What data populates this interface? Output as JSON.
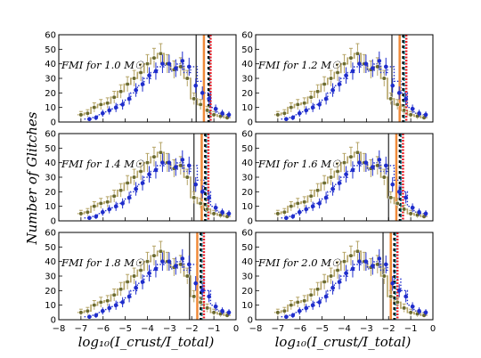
{
  "figure": {
    "ylabel": "Number of Glitches",
    "xlabel": "log₁₀(I_crust/I_total)"
  },
  "chart_data": {
    "type": "histogram-grid",
    "shared_x_range": [
      -8,
      0
    ],
    "shared_y_range": [
      0,
      60
    ],
    "x_ticks": [
      "−8",
      "−7",
      "−6",
      "−5",
      "−4",
      "−3",
      "−2",
      "−1",
      "0"
    ],
    "y_ticks": [
      "0",
      "10",
      "20",
      "30",
      "40",
      "50",
      "60"
    ],
    "x_bin_centers": [
      -7.0,
      -6.7,
      -6.4,
      -6.1,
      -5.8,
      -5.5,
      -5.2,
      -4.9,
      -4.6,
      -4.3,
      -4.0,
      -3.7,
      -3.4,
      -3.1,
      -2.8,
      -2.5,
      -2.2,
      -1.9,
      -1.6,
      -1.3,
      -1.0,
      -0.7,
      -0.4
    ],
    "colors": {
      "olive": "#b5a466",
      "blue": "#1f2dcc",
      "grey": "#333333",
      "orange": "#f08a3a",
      "red": "#e8202a",
      "teal": "#1b7e8c",
      "black": "#000000"
    },
    "panels": [
      {
        "label": "FMI for 1.0 M☉",
        "olive_step": [
          5,
          6,
          10,
          12,
          13,
          17,
          21,
          26,
          30,
          34,
          40,
          44,
          47,
          40,
          36,
          38,
          30,
          16,
          12,
          8,
          5,
          4,
          3
        ],
        "olive_points": [
          5,
          6,
          10,
          12,
          13,
          17,
          21,
          26,
          30,
          34,
          40,
          44,
          47,
          40,
          36,
          38,
          30,
          16,
          12,
          8,
          5,
          4,
          3
        ],
        "blue_points": [
          null,
          2,
          3,
          6,
          8,
          10,
          12,
          16,
          22,
          26,
          32,
          35,
          40,
          40,
          37,
          42,
          38,
          25,
          20,
          16,
          9,
          6,
          5
        ],
        "blue_dotted_step": [
          null,
          2,
          3,
          5,
          7,
          9,
          12,
          15,
          20,
          25,
          30,
          34,
          38,
          39,
          35,
          40,
          34,
          38,
          28,
          20,
          10,
          6,
          5
        ],
        "vlines": {
          "grey": -1.8,
          "orange": -1.45,
          "teal": -1.2,
          "red": -1.15,
          "black": -1.25
        }
      },
      {
        "label": "FMI for 1.2 M☉",
        "olive_step": [
          5,
          6,
          10,
          12,
          13,
          17,
          21,
          26,
          30,
          34,
          40,
          44,
          47,
          40,
          36,
          38,
          30,
          16,
          12,
          8,
          5,
          4,
          3
        ],
        "olive_points": [
          5,
          6,
          10,
          12,
          13,
          17,
          21,
          26,
          30,
          34,
          40,
          44,
          47,
          40,
          36,
          38,
          30,
          16,
          12,
          8,
          5,
          4,
          3
        ],
        "blue_points": [
          null,
          2,
          3,
          6,
          8,
          10,
          12,
          16,
          22,
          26,
          32,
          35,
          40,
          40,
          37,
          42,
          38,
          25,
          20,
          16,
          9,
          6,
          5
        ],
        "blue_dotted_step": [
          null,
          2,
          3,
          5,
          7,
          9,
          12,
          15,
          20,
          25,
          30,
          34,
          38,
          39,
          35,
          40,
          34,
          38,
          28,
          20,
          10,
          6,
          5
        ],
        "vlines": {
          "grey": -1.85,
          "orange": -1.5,
          "teal": -1.3,
          "red": -1.2,
          "black": -1.35
        }
      },
      {
        "label": "FMI for 1.4 M☉",
        "olive_step": [
          5,
          6,
          10,
          12,
          13,
          17,
          21,
          26,
          30,
          34,
          40,
          44,
          47,
          40,
          36,
          38,
          30,
          16,
          12,
          8,
          5,
          4,
          3
        ],
        "olive_points": [
          5,
          6,
          10,
          12,
          13,
          17,
          21,
          26,
          30,
          34,
          40,
          44,
          47,
          40,
          36,
          38,
          30,
          16,
          12,
          8,
          5,
          4,
          3
        ],
        "blue_points": [
          null,
          2,
          3,
          6,
          8,
          10,
          12,
          16,
          22,
          26,
          32,
          35,
          40,
          40,
          37,
          42,
          38,
          25,
          20,
          16,
          9,
          6,
          5
        ],
        "blue_dotted_step": [
          null,
          2,
          3,
          5,
          7,
          9,
          12,
          15,
          20,
          25,
          30,
          34,
          38,
          39,
          35,
          40,
          34,
          38,
          28,
          20,
          10,
          6,
          5
        ],
        "vlines": {
          "grey": -1.9,
          "orange": -1.55,
          "teal": -1.35,
          "red": -1.25,
          "black": -1.4
        }
      },
      {
        "label": "FMI for 1.6 M☉",
        "olive_step": [
          5,
          6,
          10,
          12,
          13,
          17,
          21,
          26,
          30,
          34,
          40,
          44,
          47,
          40,
          36,
          38,
          30,
          16,
          12,
          8,
          5,
          4,
          3
        ],
        "olive_points": [
          5,
          6,
          10,
          12,
          13,
          17,
          21,
          26,
          30,
          34,
          40,
          44,
          47,
          40,
          36,
          38,
          30,
          16,
          12,
          8,
          5,
          4,
          3
        ],
        "blue_points": [
          null,
          2,
          3,
          6,
          8,
          10,
          12,
          16,
          22,
          26,
          32,
          35,
          40,
          40,
          37,
          42,
          38,
          25,
          20,
          16,
          9,
          6,
          5
        ],
        "blue_dotted_step": [
          null,
          2,
          3,
          5,
          7,
          9,
          12,
          15,
          20,
          25,
          30,
          34,
          38,
          39,
          35,
          40,
          34,
          38,
          28,
          20,
          10,
          6,
          5
        ],
        "vlines": {
          "grey": -2.0,
          "orange": -1.65,
          "teal": -1.45,
          "red": -1.35,
          "black": -1.5
        }
      },
      {
        "label": "FMI for 1.8 M☉",
        "olive_step": [
          5,
          6,
          10,
          12,
          13,
          17,
          21,
          26,
          30,
          34,
          40,
          44,
          47,
          40,
          36,
          38,
          30,
          16,
          12,
          8,
          5,
          4,
          3
        ],
        "olive_points": [
          5,
          6,
          10,
          12,
          13,
          17,
          21,
          26,
          30,
          34,
          40,
          44,
          47,
          40,
          36,
          38,
          30,
          16,
          12,
          8,
          5,
          4,
          3
        ],
        "blue_points": [
          null,
          2,
          3,
          6,
          8,
          10,
          12,
          16,
          22,
          26,
          32,
          35,
          40,
          40,
          37,
          42,
          38,
          25,
          20,
          16,
          9,
          6,
          5
        ],
        "blue_dotted_step": [
          null,
          2,
          3,
          5,
          7,
          9,
          12,
          15,
          20,
          25,
          30,
          34,
          38,
          39,
          35,
          40,
          34,
          38,
          28,
          20,
          10,
          6,
          5
        ],
        "vlines": {
          "grey": -2.1,
          "orange": -1.75,
          "teal": -1.55,
          "red": -1.45,
          "black": -1.6
        }
      },
      {
        "label": "FMI for 2.0 M☉",
        "olive_step": [
          5,
          6,
          10,
          12,
          13,
          17,
          21,
          26,
          30,
          34,
          40,
          44,
          47,
          40,
          36,
          38,
          30,
          16,
          12,
          8,
          5,
          4,
          3
        ],
        "olive_points": [
          5,
          6,
          10,
          12,
          13,
          17,
          21,
          26,
          30,
          34,
          40,
          44,
          47,
          40,
          36,
          38,
          30,
          16,
          12,
          8,
          5,
          4,
          3
        ],
        "blue_points": [
          null,
          2,
          3,
          6,
          8,
          10,
          12,
          16,
          22,
          26,
          32,
          35,
          40,
          40,
          37,
          42,
          38,
          25,
          20,
          16,
          9,
          6,
          5
        ],
        "blue_dotted_step": [
          null,
          2,
          3,
          5,
          7,
          9,
          12,
          15,
          20,
          25,
          30,
          34,
          38,
          39,
          35,
          40,
          34,
          38,
          28,
          20,
          10,
          6,
          5
        ],
        "vlines": {
          "grey": -2.25,
          "orange": -1.9,
          "teal": -1.7,
          "red": -1.6,
          "black": -1.75
        }
      }
    ]
  }
}
